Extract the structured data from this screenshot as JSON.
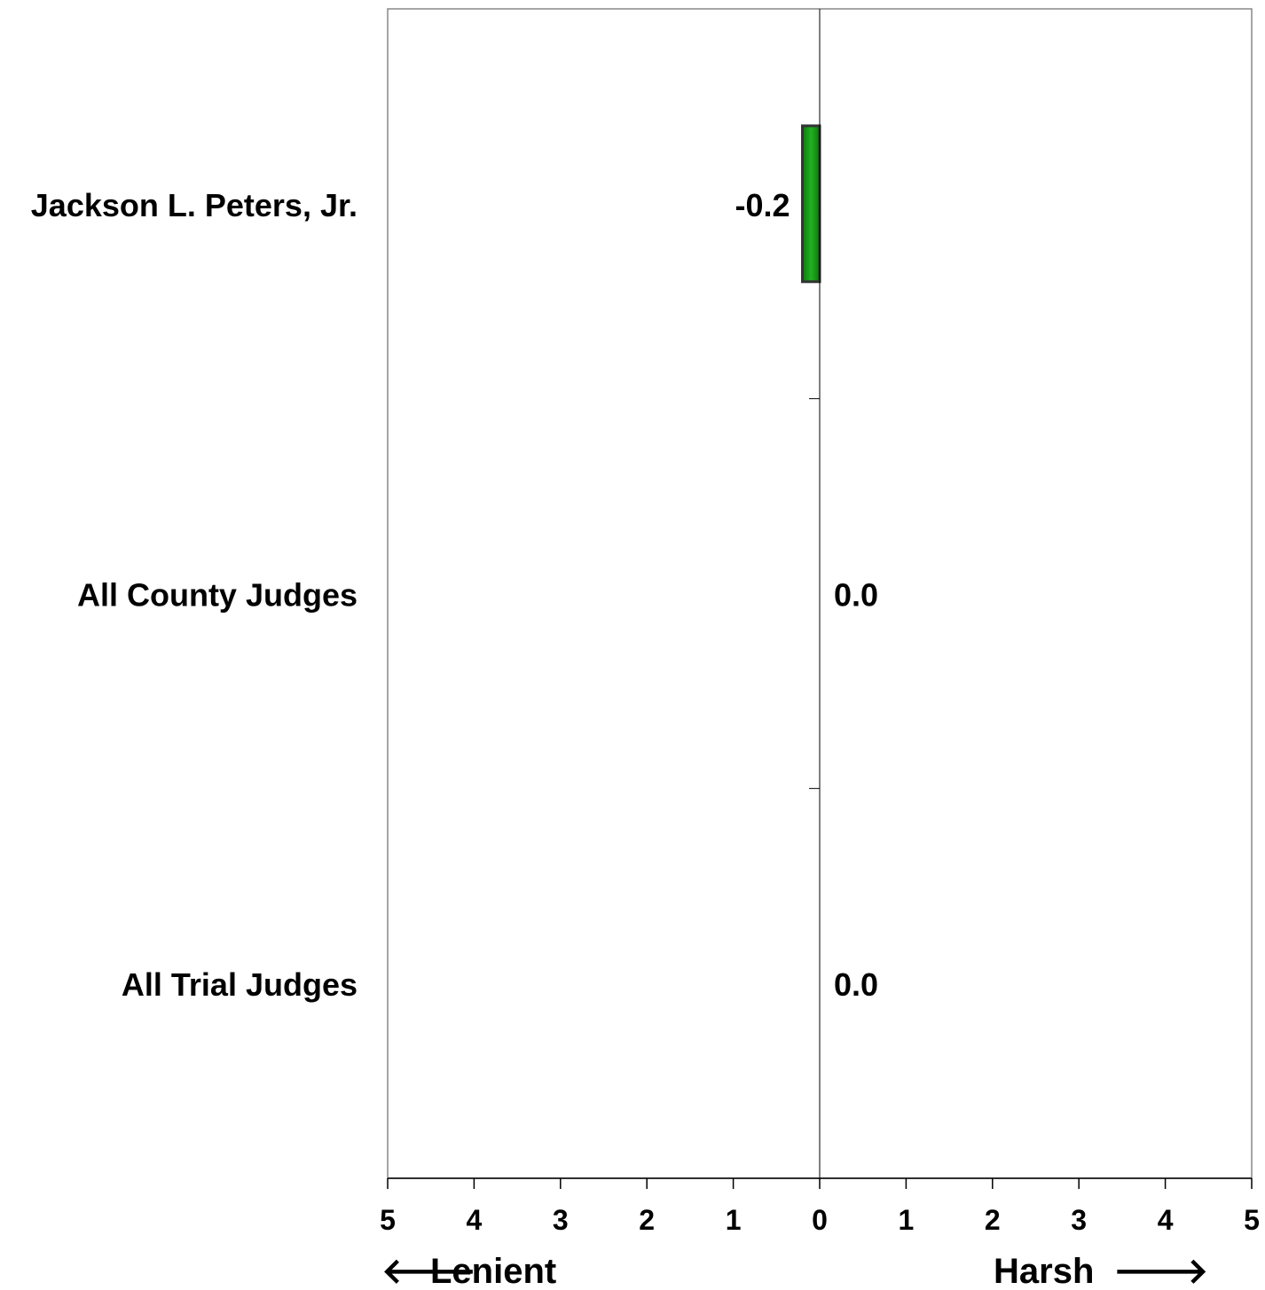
{
  "chart_data": {
    "type": "bar",
    "orientation": "horizontal",
    "categories": [
      "Jackson L. Peters, Jr.",
      "All County Judges",
      "All Trial Judges"
    ],
    "values": [
      -0.2,
      0.0,
      0.0
    ],
    "value_labels": [
      "-0.2",
      "0.0",
      "0.0"
    ],
    "xlim": [
      -5,
      5
    ],
    "x_ticks": [
      -5,
      -4,
      -3,
      -2,
      -1,
      0,
      1,
      2,
      3,
      4,
      5
    ],
    "x_tick_labels": [
      "5",
      "4",
      "3",
      "2",
      "1",
      "0",
      "1",
      "2",
      "3",
      "4",
      "5"
    ],
    "left_axis_label": "Lenient",
    "right_axis_label": "Harsh",
    "left_arrow": "🡐",
    "right_arrow": "🡒",
    "bar_color": "#119911",
    "bar_edge_color": "#333333",
    "grid": false,
    "legend": "none"
  }
}
